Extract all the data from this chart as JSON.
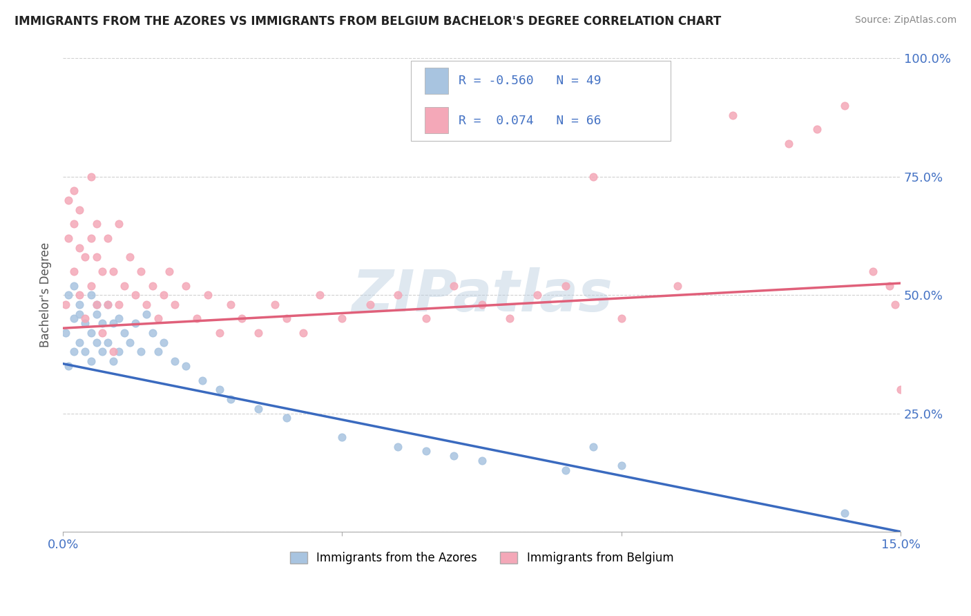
{
  "title": "IMMIGRANTS FROM THE AZORES VS IMMIGRANTS FROM BELGIUM BACHELOR'S DEGREE CORRELATION CHART",
  "source": "Source: ZipAtlas.com",
  "ylabel": "Bachelor's Degree",
  "x_min": 0.0,
  "x_max": 0.15,
  "y_min": 0.0,
  "y_max": 1.0,
  "x_ticks": [
    0.0,
    0.05,
    0.1,
    0.15
  ],
  "x_tick_labels": [
    "0.0%",
    "",
    "",
    "15.0%"
  ],
  "y_ticks": [
    0.0,
    0.25,
    0.5,
    0.75,
    1.0
  ],
  "y_tick_labels": [
    "",
    "25.0%",
    "50.0%",
    "75.0%",
    "100.0%"
  ],
  "legend1_label": "Immigrants from the Azores",
  "legend2_label": "Immigrants from Belgium",
  "r1": -0.56,
  "n1": 49,
  "r2": 0.074,
  "n2": 66,
  "color_blue": "#a8c4e0",
  "color_pink": "#f4a8b8",
  "color_blue_line": "#3a6abf",
  "color_pink_line": "#e0607a",
  "watermark": "ZIPatlas",
  "background_color": "#ffffff",
  "grid_color": "#d0d0d0",
  "blue_scatter_x": [
    0.0005,
    0.001,
    0.001,
    0.002,
    0.002,
    0.002,
    0.003,
    0.003,
    0.003,
    0.004,
    0.004,
    0.005,
    0.005,
    0.005,
    0.006,
    0.006,
    0.006,
    0.007,
    0.007,
    0.008,
    0.008,
    0.009,
    0.009,
    0.01,
    0.01,
    0.011,
    0.012,
    0.013,
    0.014,
    0.015,
    0.016,
    0.017,
    0.018,
    0.02,
    0.022,
    0.025,
    0.028,
    0.03,
    0.035,
    0.04,
    0.05,
    0.06,
    0.065,
    0.07,
    0.075,
    0.09,
    0.095,
    0.1,
    0.14
  ],
  "blue_scatter_y": [
    0.42,
    0.35,
    0.5,
    0.38,
    0.45,
    0.52,
    0.4,
    0.46,
    0.48,
    0.38,
    0.44,
    0.36,
    0.42,
    0.5,
    0.4,
    0.46,
    0.48,
    0.38,
    0.44,
    0.4,
    0.48,
    0.36,
    0.44,
    0.38,
    0.45,
    0.42,
    0.4,
    0.44,
    0.38,
    0.46,
    0.42,
    0.38,
    0.4,
    0.36,
    0.35,
    0.32,
    0.3,
    0.28,
    0.26,
    0.24,
    0.2,
    0.18,
    0.17,
    0.16,
    0.15,
    0.13,
    0.18,
    0.14,
    0.04
  ],
  "pink_scatter_x": [
    0.0005,
    0.001,
    0.001,
    0.002,
    0.002,
    0.002,
    0.003,
    0.003,
    0.003,
    0.004,
    0.004,
    0.005,
    0.005,
    0.005,
    0.006,
    0.006,
    0.006,
    0.007,
    0.007,
    0.008,
    0.008,
    0.009,
    0.009,
    0.01,
    0.01,
    0.011,
    0.012,
    0.013,
    0.014,
    0.015,
    0.016,
    0.017,
    0.018,
    0.019,
    0.02,
    0.022,
    0.024,
    0.026,
    0.028,
    0.03,
    0.032,
    0.035,
    0.038,
    0.04,
    0.043,
    0.046,
    0.05,
    0.055,
    0.06,
    0.065,
    0.07,
    0.075,
    0.08,
    0.085,
    0.09,
    0.095,
    0.1,
    0.11,
    0.12,
    0.13,
    0.135,
    0.14,
    0.145,
    0.148,
    0.149,
    0.15
  ],
  "pink_scatter_y": [
    0.48,
    0.62,
    0.7,
    0.55,
    0.65,
    0.72,
    0.5,
    0.6,
    0.68,
    0.45,
    0.58,
    0.52,
    0.62,
    0.75,
    0.48,
    0.58,
    0.65,
    0.42,
    0.55,
    0.48,
    0.62,
    0.38,
    0.55,
    0.48,
    0.65,
    0.52,
    0.58,
    0.5,
    0.55,
    0.48,
    0.52,
    0.45,
    0.5,
    0.55,
    0.48,
    0.52,
    0.45,
    0.5,
    0.42,
    0.48,
    0.45,
    0.42,
    0.48,
    0.45,
    0.42,
    0.5,
    0.45,
    0.48,
    0.5,
    0.45,
    0.52,
    0.48,
    0.45,
    0.5,
    0.52,
    0.75,
    0.45,
    0.52,
    0.88,
    0.82,
    0.85,
    0.9,
    0.55,
    0.52,
    0.48,
    0.3
  ]
}
